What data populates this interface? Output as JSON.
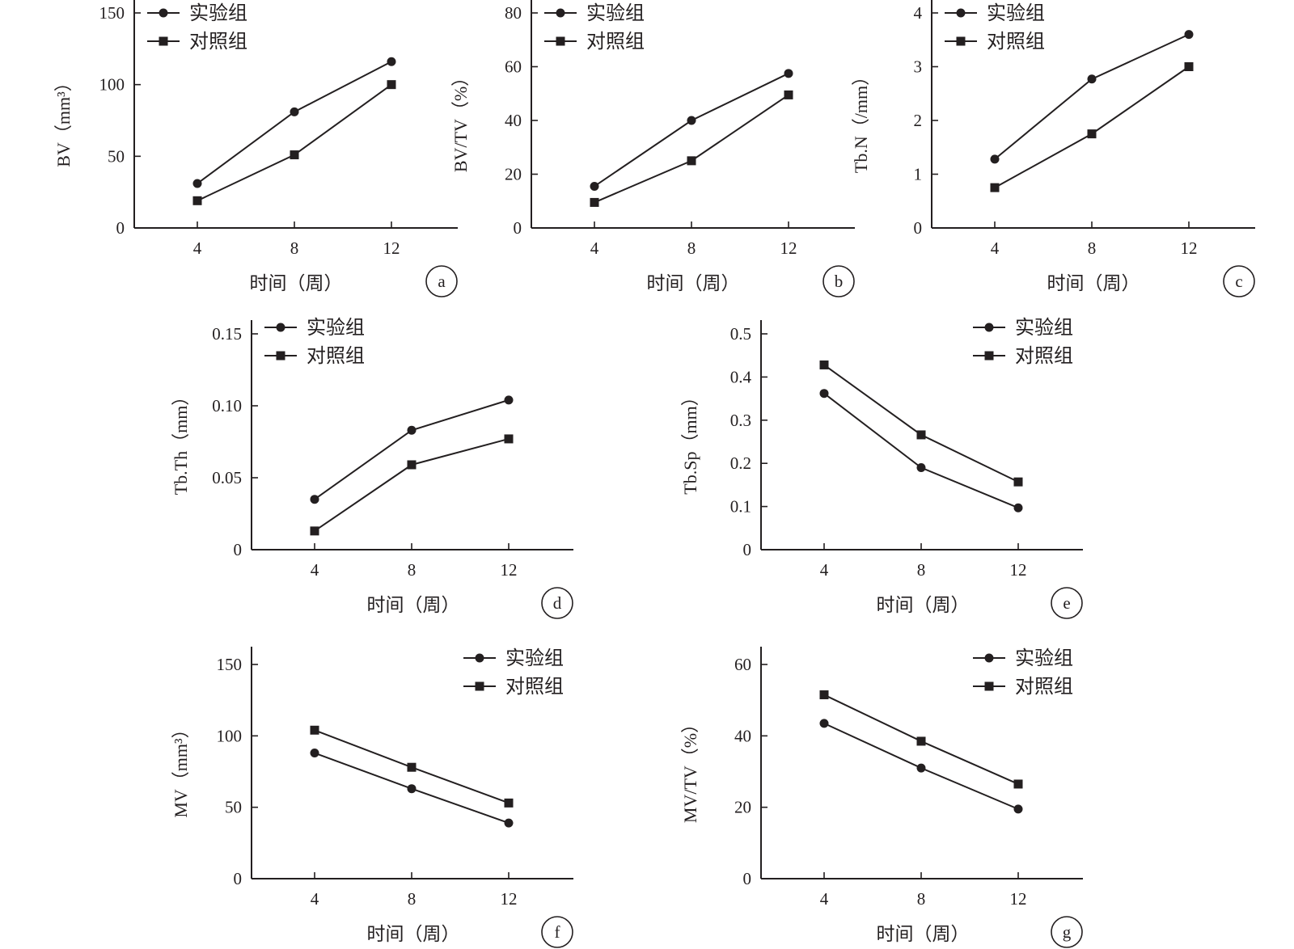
{
  "chart_data": [
    {
      "panel_label": "a",
      "type": "line",
      "x": [
        4,
        8,
        12
      ],
      "xticks": [
        "4",
        "8",
        "12"
      ],
      "xlabel": "时间（周）",
      "ylabel": "BV（mm³）",
      "ylim": [
        0,
        150
      ],
      "yticks": [
        "0",
        "50",
        "100",
        "150"
      ],
      "legend_position": "top-left",
      "series": [
        {
          "name": "实验组",
          "marker": "circle",
          "values": [
            31,
            81,
            116
          ]
        },
        {
          "name": "对照组",
          "marker": "square",
          "values": [
            19,
            51,
            100
          ]
        }
      ]
    },
    {
      "panel_label": "b",
      "type": "line",
      "x": [
        4,
        8,
        12
      ],
      "xticks": [
        "4",
        "8",
        "12"
      ],
      "xlabel": "时间（周）",
      "ylabel": "BV/TV（%）",
      "ylim": [
        0,
        80
      ],
      "yticks": [
        "0",
        "20",
        "40",
        "60",
        "80"
      ],
      "legend_position": "top-left",
      "series": [
        {
          "name": "实验组",
          "marker": "circle",
          "values": [
            15.5,
            40,
            57.5
          ]
        },
        {
          "name": "对照组",
          "marker": "square",
          "values": [
            9.5,
            25,
            49.5
          ]
        }
      ]
    },
    {
      "panel_label": "c",
      "type": "line",
      "x": [
        4,
        8,
        12
      ],
      "xticks": [
        "4",
        "8",
        "12"
      ],
      "xlabel": "时间（周）",
      "ylabel": "Tb.N（/mm）",
      "ylim": [
        0,
        4
      ],
      "yticks": [
        "0",
        "1",
        "2",
        "3",
        "4"
      ],
      "legend_position": "top-left",
      "series": [
        {
          "name": "实验组",
          "marker": "circle",
          "values": [
            1.28,
            2.77,
            3.6
          ]
        },
        {
          "name": "对照组",
          "marker": "square",
          "values": [
            0.75,
            1.75,
            3.0
          ]
        }
      ]
    },
    {
      "panel_label": "d",
      "type": "line",
      "x": [
        4,
        8,
        12
      ],
      "xticks": [
        "4",
        "8",
        "12"
      ],
      "xlabel": "时间（周）",
      "ylabel": "Tb.Th（mm）",
      "ylim": [
        0,
        0.15
      ],
      "yticks": [
        "0",
        "0.05",
        "0.10",
        "0.15"
      ],
      "legend_position": "top-left",
      "series": [
        {
          "name": "实验组",
          "marker": "circle",
          "values": [
            0.035,
            0.083,
            0.104
          ]
        },
        {
          "name": "对照组",
          "marker": "square",
          "values": [
            0.013,
            0.059,
            0.077
          ]
        }
      ]
    },
    {
      "panel_label": "e",
      "type": "line",
      "x": [
        4,
        8,
        12
      ],
      "xticks": [
        "4",
        "8",
        "12"
      ],
      "xlabel": "时间（周）",
      "ylabel": "Tb.Sp（mm）",
      "ylim": [
        0,
        0.5
      ],
      "yticks": [
        "0",
        "0.1",
        "0.2",
        "0.3",
        "0.4",
        "0.5"
      ],
      "legend_position": "top-right",
      "series": [
        {
          "name": "实验组",
          "marker": "circle",
          "values": [
            0.362,
            0.19,
            0.097
          ]
        },
        {
          "name": "对照组",
          "marker": "square",
          "values": [
            0.428,
            0.266,
            0.157
          ]
        }
      ]
    },
    {
      "panel_label": "f",
      "type": "line",
      "x": [
        4,
        8,
        12
      ],
      "xticks": [
        "4",
        "8",
        "12"
      ],
      "xlabel": "时间（周）",
      "ylabel": "MV（mm³）",
      "ylim": [
        0,
        150
      ],
      "yticks": [
        "0",
        "50",
        "100",
        "150"
      ],
      "legend_position": "top-right",
      "series": [
        {
          "name": "实验组",
          "marker": "circle",
          "values": [
            88,
            63,
            39
          ]
        },
        {
          "name": "对照组",
          "marker": "square",
          "values": [
            104,
            78,
            53
          ]
        }
      ]
    },
    {
      "panel_label": "g",
      "type": "line",
      "x": [
        4,
        8,
        12
      ],
      "xticks": [
        "4",
        "8",
        "12"
      ],
      "xlabel": "时间（周）",
      "ylabel": "MV/TV（%）",
      "ylim": [
        0,
        60
      ],
      "yticks": [
        "0",
        "20",
        "40",
        "60"
      ],
      "legend_position": "top-right",
      "series": [
        {
          "name": "实验组",
          "marker": "circle",
          "values": [
            43.5,
            31,
            19.5
          ]
        },
        {
          "name": "对照组",
          "marker": "square",
          "values": [
            51.5,
            38.5,
            26.5
          ]
        }
      ]
    }
  ]
}
